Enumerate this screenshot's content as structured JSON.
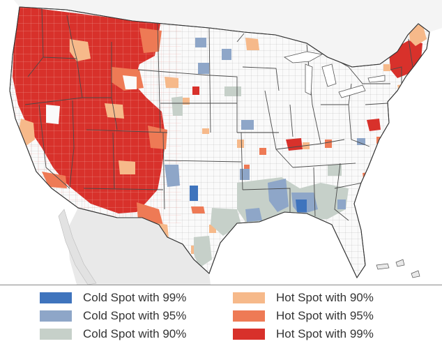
{
  "map": {
    "subject": "Contiguous United States county hot spot / cold spot analysis",
    "colors": {
      "cold99": "#3f74bd",
      "cold95": "#8ea6c8",
      "cold90": "#c6d0c9",
      "hot90": "#f6b98a",
      "hot95": "#ee7a55",
      "hot99": "#d8312b",
      "land": "#fafafa",
      "mexico": "#e9e9e9",
      "water": "#ffffff",
      "borders": "#9a9a9a"
    }
  },
  "legend": {
    "items": [
      {
        "label": "Cold Spot with 99%",
        "color": "#3f74bd"
      },
      {
        "label": "Cold Spot with 95%",
        "color": "#8ea6c8"
      },
      {
        "label": "Cold Spot with 90%",
        "color": "#c6d0c9"
      },
      {
        "label": "Hot Spot with 90%",
        "color": "#f6b98a"
      },
      {
        "label": "Hot Spot with 95%",
        "color": "#ee7a55"
      },
      {
        "label": "Hot Spot with 99%",
        "color": "#d8312b"
      }
    ]
  }
}
